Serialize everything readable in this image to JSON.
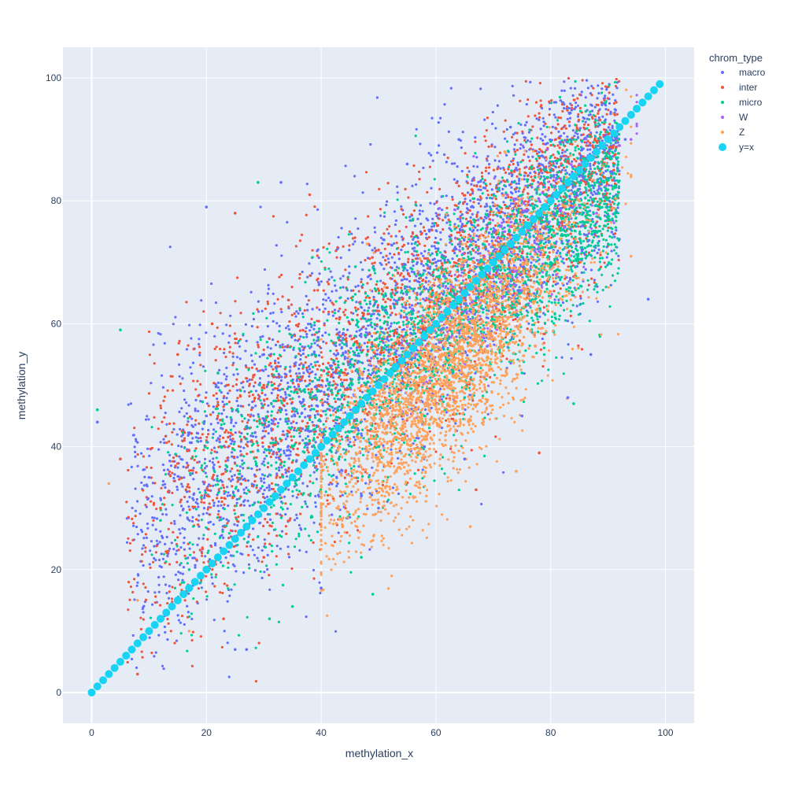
{
  "chart_data": {
    "type": "scatter",
    "title": "",
    "xlabel": "methylation_x",
    "ylabel": "methylation_y",
    "xlim": [
      -5,
      105
    ],
    "ylim": [
      -5,
      105
    ],
    "xticks": [
      "0",
      "20",
      "40",
      "60",
      "80",
      "100"
    ],
    "yticks": [
      "0",
      "20",
      "40",
      "60",
      "80",
      "100"
    ],
    "grid": true,
    "legend_position": "top-right",
    "legend_title": "chrom_type",
    "plot_background": "#e5ecf6",
    "series": [
      {
        "name": "macro",
        "color": "#636efa",
        "marker": "small-dot",
        "description_points": [
          [
            1,
            44
          ],
          [
            10,
            35
          ],
          [
            20,
            79
          ],
          [
            20,
            45
          ],
          [
            30,
            55
          ],
          [
            33,
            83
          ],
          [
            40,
            50
          ],
          [
            45,
            58
          ],
          [
            55,
            86
          ],
          [
            55,
            50
          ],
          [
            60,
            70
          ],
          [
            64,
            90
          ],
          [
            70,
            75
          ],
          [
            73,
            92
          ],
          [
            80,
            80
          ],
          [
            85,
            84
          ],
          [
            90,
            88
          ],
          [
            93,
            90
          ],
          [
            97,
            64
          ],
          [
            87,
            55
          ],
          [
            83,
            48
          ],
          [
            75,
            45
          ],
          [
            65,
            38
          ],
          [
            58,
            40
          ],
          [
            47,
            32
          ],
          [
            50,
            30
          ],
          [
            40,
            17
          ],
          [
            25,
            7
          ],
          [
            27,
            7
          ]
        ]
      },
      {
        "name": "inter",
        "color": "#ef553b",
        "marker": "small-dot",
        "description_points": [
          [
            8,
            3
          ],
          [
            5,
            38
          ],
          [
            12,
            30
          ],
          [
            15,
            55
          ],
          [
            21,
            60
          ],
          [
            25,
            78
          ],
          [
            30,
            50
          ],
          [
            38,
            81
          ],
          [
            40,
            45
          ],
          [
            45,
            60
          ],
          [
            50,
            72
          ],
          [
            57,
            50
          ],
          [
            60,
            65
          ],
          [
            66,
            81
          ],
          [
            72,
            62
          ],
          [
            78,
            39
          ],
          [
            85,
            70
          ],
          [
            91,
            85
          ],
          [
            67,
            33
          ],
          [
            23,
            12
          ],
          [
            30,
            22
          ]
        ]
      },
      {
        "name": "micro",
        "color": "#00cc96",
        "marker": "small-dot",
        "description_points": [
          [
            1,
            46
          ],
          [
            5,
            59
          ],
          [
            12,
            28
          ],
          [
            17,
            20
          ],
          [
            22,
            52
          ],
          [
            29,
            83
          ],
          [
            35,
            40
          ],
          [
            42,
            50
          ],
          [
            48,
            55
          ],
          [
            50,
            40
          ],
          [
            55,
            50
          ],
          [
            58,
            45
          ],
          [
            62,
            54
          ],
          [
            65,
            48
          ],
          [
            70,
            60
          ],
          [
            75,
            52
          ],
          [
            80,
            70
          ],
          [
            84,
            47
          ],
          [
            47,
            22
          ],
          [
            49,
            16
          ],
          [
            31,
            12
          ],
          [
            35,
            14
          ]
        ]
      },
      {
        "name": "W",
        "color": "#ab63fa",
        "marker": "small-dot",
        "description_points": [
          [
            63,
            66
          ],
          [
            72,
            75
          ],
          [
            78,
            80
          ],
          [
            85,
            86
          ],
          [
            92,
            89
          ],
          [
            94,
            90
          ],
          [
            88,
            78
          ],
          [
            81,
            68
          ]
        ]
      },
      {
        "name": "Z",
        "color": "#ffa15a",
        "marker": "small-dot",
        "description_points": [
          [
            3,
            34
          ],
          [
            8,
            15
          ],
          [
            17,
            10
          ],
          [
            48,
            73
          ],
          [
            55,
            55
          ],
          [
            60,
            65
          ],
          [
            65,
            60
          ],
          [
            70,
            70
          ],
          [
            72,
            88
          ],
          [
            75,
            75
          ],
          [
            80,
            78
          ],
          [
            85,
            80
          ],
          [
            90,
            90
          ],
          [
            94,
            71
          ],
          [
            74,
            36
          ],
          [
            66,
            27
          ]
        ]
      },
      {
        "name": "y=x",
        "color": "#19d3f3",
        "marker": "large-dot",
        "x_start": 0,
        "x_end": 99,
        "x_step": 1
      }
    ]
  }
}
